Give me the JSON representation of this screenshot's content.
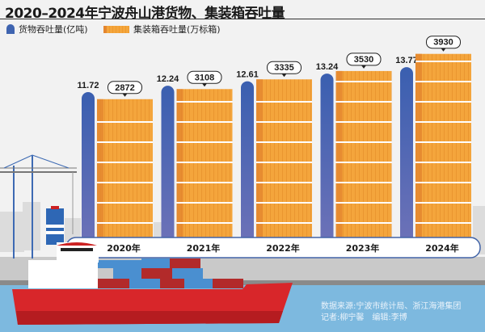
{
  "title": "2020–2024年宁波舟山港货物、集装箱吞吐量",
  "legend": {
    "cargo": "货物吞吐量(亿吨)",
    "container": "集装箱吞吐量(万标箱)"
  },
  "colors": {
    "cargo": "#3f64b0",
    "container": "#f4a53c",
    "sea": "#7db9df",
    "ship": "#d8262a"
  },
  "source": "数据来源:宁波市统计局、浙江海港集团",
  "credits": "记者:柳宁馨　编辑:李博",
  "chart_data": {
    "type": "bar",
    "title": "2020–2024年宁波舟山港货物、集装箱吞吐量",
    "categories": [
      "2020年",
      "2021年",
      "2022年",
      "2023年",
      "2024年"
    ],
    "series": [
      {
        "name": "货物吞吐量(亿吨)",
        "values": [
          11.72,
          12.24,
          12.61,
          13.24,
          13.77
        ],
        "labels": [
          "11.72",
          "12.24",
          "12.61",
          "13.24",
          "13.77"
        ]
      },
      {
        "name": "集装箱吞吐量(万标箱)",
        "values": [
          2872,
          3108,
          3335,
          3530,
          3930
        ],
        "labels": [
          "2872",
          "3108",
          "3335",
          "3530",
          "3930"
        ]
      }
    ],
    "legend": "top-left",
    "grid": false
  }
}
